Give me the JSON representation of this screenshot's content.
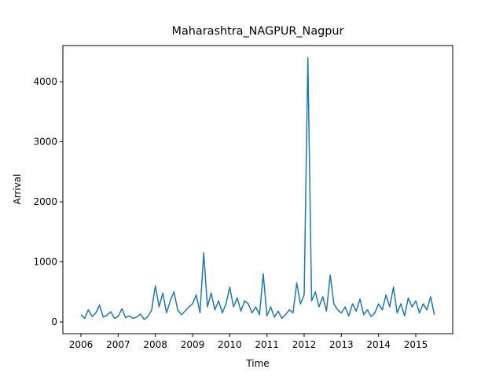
{
  "chart_data": {
    "type": "line",
    "title": "Maharashtra_NAGPUR_Nagpur",
    "xlabel": "Time",
    "ylabel": "Arrival",
    "color": "#1f77b4",
    "x": [
      2006.0,
      2006.1,
      2006.2,
      2006.3,
      2006.4,
      2006.5,
      2006.6,
      2006.7,
      2006.8,
      2006.9,
      2007.0,
      2007.1,
      2007.2,
      2007.3,
      2007.4,
      2007.5,
      2007.6,
      2007.7,
      2007.8,
      2007.9,
      2008.0,
      2008.1,
      2008.2,
      2008.3,
      2008.4,
      2008.5,
      2008.6,
      2008.7,
      2008.8,
      2008.9,
      2009.0,
      2009.1,
      2009.2,
      2009.3,
      2009.4,
      2009.5,
      2009.6,
      2009.7,
      2009.8,
      2009.9,
      2010.0,
      2010.1,
      2010.2,
      2010.3,
      2010.4,
      2010.5,
      2010.6,
      2010.7,
      2010.8,
      2010.9,
      2011.0,
      2011.1,
      2011.2,
      2011.3,
      2011.4,
      2011.5,
      2011.6,
      2011.7,
      2011.8,
      2011.9,
      2012.0,
      2012.1,
      2012.2,
      2012.3,
      2012.4,
      2012.5,
      2012.6,
      2012.7,
      2012.8,
      2012.9,
      2013.0,
      2013.1,
      2013.2,
      2013.3,
      2013.4,
      2013.5,
      2013.6,
      2013.7,
      2013.8,
      2013.9,
      2014.0,
      2014.1,
      2014.2,
      2014.3,
      2014.4,
      2014.5,
      2014.6,
      2014.7,
      2014.8,
      2014.9,
      2015.0,
      2015.1,
      2015.2,
      2015.3,
      2015.4,
      2015.5
    ],
    "values": [
      120,
      60,
      200,
      90,
      150,
      280,
      80,
      110,
      170,
      60,
      90,
      220,
      70,
      100,
      60,
      80,
      130,
      40,
      90,
      200,
      600,
      250,
      480,
      150,
      350,
      500,
      200,
      120,
      180,
      250,
      300,
      450,
      150,
      1150,
      250,
      480,
      200,
      350,
      150,
      300,
      580,
      250,
      400,
      180,
      350,
      300,
      150,
      250,
      120,
      800,
      100,
      250,
      80,
      180,
      60,
      120,
      200,
      150,
      650,
      300,
      450,
      4400,
      350,
      500,
      250,
      420,
      180,
      780,
      300,
      200,
      150,
      250,
      100,
      300,
      180,
      380,
      120,
      200,
      90,
      150,
      300,
      200,
      450,
      250,
      580,
      150,
      300,
      100,
      400,
      250,
      350,
      150,
      300,
      200,
      420,
      120
    ],
    "xlim": [
      2005.514,
      2015.993
    ],
    "ylim": [
      -196,
      4601
    ],
    "xticks": [
      2006,
      2007,
      2008,
      2009,
      2010,
      2011,
      2012,
      2013,
      2014,
      2015
    ],
    "yticks": [
      0,
      1000,
      2000,
      3000,
      4000
    ]
  }
}
